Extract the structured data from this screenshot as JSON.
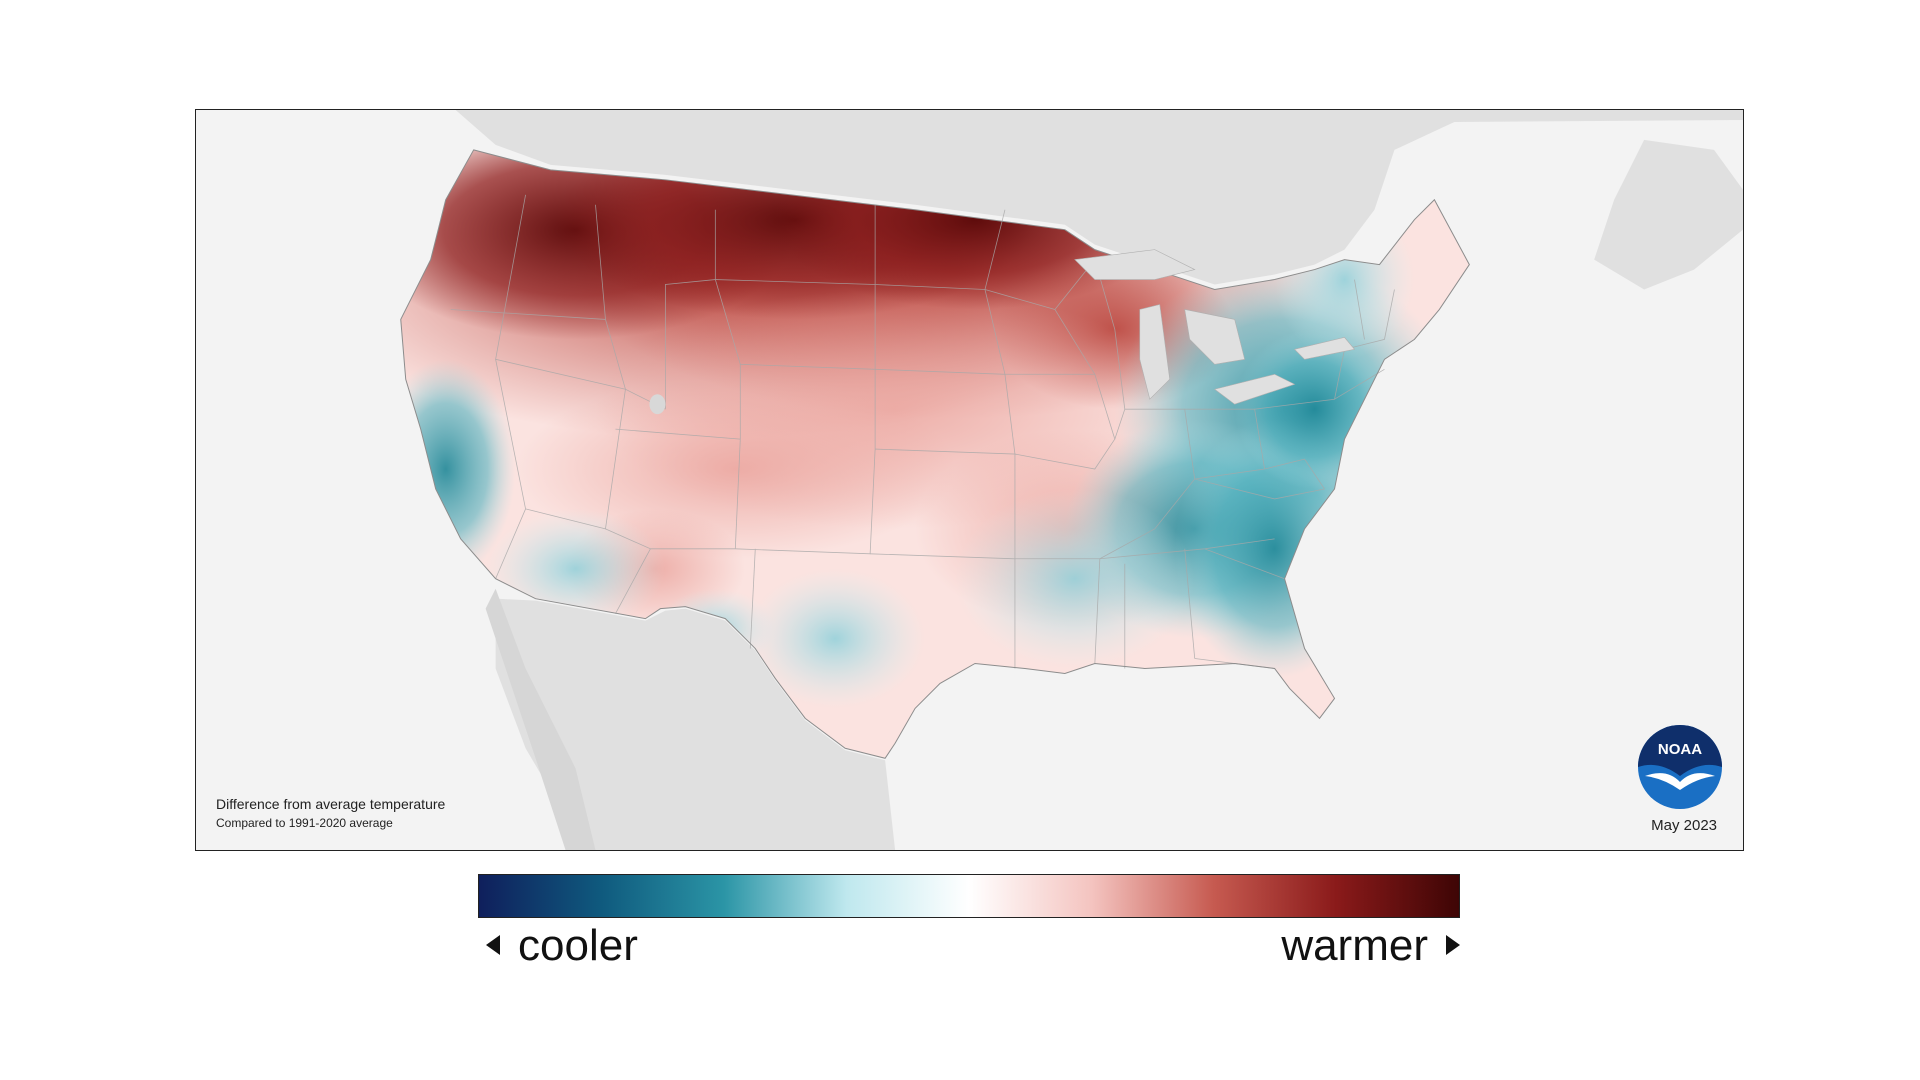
{
  "map": {
    "caption_title": "Difference from average temperature",
    "caption_subtitle": "Compared to 1991-2020 average",
    "date": "May 2023",
    "logo_text": "NOAA",
    "colors": {
      "ocean": "#f3f3f3",
      "land_outside": "#e0e0e0",
      "border": "#9a9a9a"
    }
  },
  "legend": {
    "cooler_label": "cooler",
    "warmer_label": "warmer",
    "left_arrow_icon": "arrow-left-icon",
    "right_arrow_icon": "arrow-right-icon",
    "gradient": [
      "#0f1f5c",
      "#0f5a7e",
      "#2b95a6",
      "#bfe8ee",
      "#ffffff",
      "#f4c4c0",
      "#c65a50",
      "#8a1a1a",
      "#3e0505"
    ]
  }
}
